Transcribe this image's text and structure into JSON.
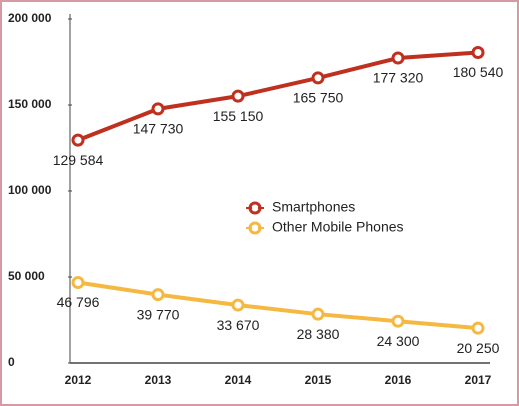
{
  "chart_data": {
    "type": "line",
    "categories": [
      "2012",
      "2013",
      "2014",
      "2015",
      "2016",
      "2017"
    ],
    "series": [
      {
        "name": "Smartphones",
        "color": "#c0301e",
        "values": [
          129584,
          147730,
          155150,
          165750,
          177320,
          180540
        ],
        "value_labels": [
          "129 584",
          "147 730",
          "155 150",
          "165 750",
          "177 320",
          "180 540"
        ]
      },
      {
        "name": "Other Mobile Phones",
        "color": "#f5b942",
        "values": [
          46796,
          39770,
          33670,
          28380,
          24300,
          20250
        ],
        "value_labels": [
          "46 796",
          "39 770",
          "33 670",
          "28 380",
          "24 300",
          "20 250"
        ]
      }
    ],
    "ylim": [
      0,
      200000
    ],
    "yticks": [
      0,
      {
        "value": 50000,
        "label": "50 000"
      },
      {
        "value": 100000,
        "label": "100 000"
      },
      {
        "value": 150000,
        "label": "150 000"
      },
      {
        "value": 200000,
        "label": "200 000"
      }
    ],
    "grid": false,
    "legend": "center"
  }
}
